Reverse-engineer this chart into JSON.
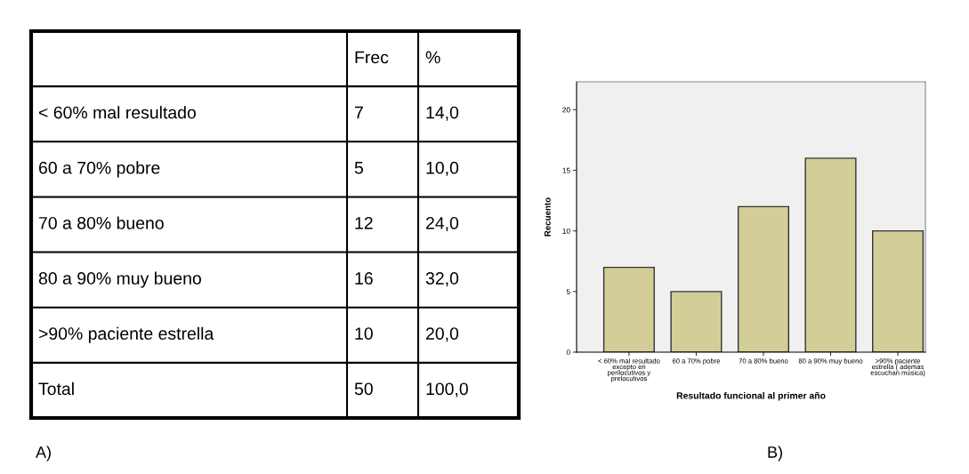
{
  "chart_data": [
    {
      "type": "other",
      "xlabel": "A)",
      "annotations": [
        null,
        "Frec",
        "%",
        "< 60% mal resultado",
        "7",
        "14,0",
        "60 a 70% pobre",
        "5",
        "10,0",
        "70 a 80% bueno",
        "12",
        "24,0",
        "80 a 90% muy bueno",
        "16",
        "32,0",
        ">90% paciente estrella",
        "10",
        "20,0",
        "Total",
        "50",
        "100,0"
      ]
    },
    {
      "type": "bar",
      "categories": [
        "< 60% mal resultado\nexcepto en\nperilocutivos y\nprelocutivos",
        "60 a 70% pobre",
        "70 a 80% bueno",
        "80 a 90% muy bueno",
        ">90% paciente\nestrella ( ademas\nescuchan música)"
      ],
      "values": [
        7,
        5,
        12,
        16,
        10
      ],
      "color": "#d3ce97",
      "ylim": [
        0,
        22.3
      ],
      "yticks": [
        0,
        5,
        10,
        15,
        20
      ],
      "grid": false,
      "legend": false,
      "xlabel": "Resultado funcional al primer año",
      "ylabel": "Recuento",
      "annotations": [
        "B)"
      ]
    }
  ]
}
